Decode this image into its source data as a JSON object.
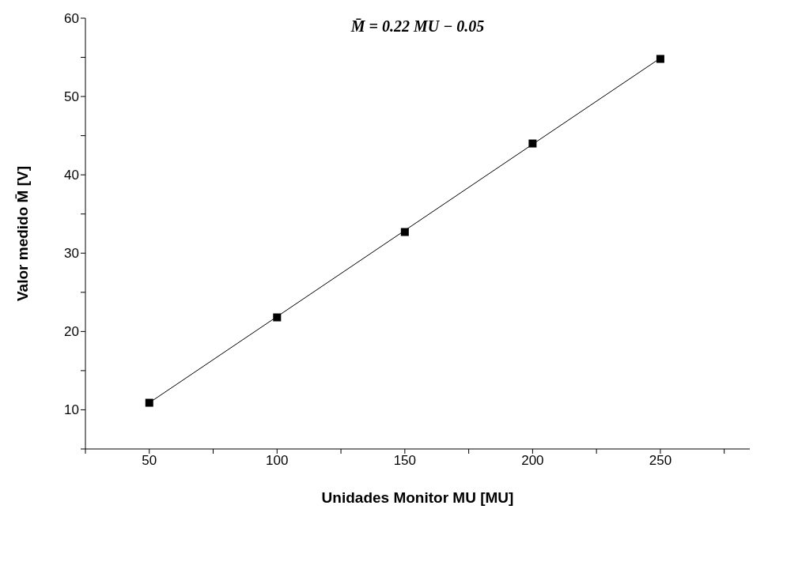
{
  "chart_data": {
    "type": "scatter",
    "title": "M̄ = 0.22 MU − 0.05",
    "xlabel": "Unidades Monitor MU     [MU]",
    "ylabel": "Valor medido M̄  [V]",
    "series": [
      {
        "color": "#000000",
        "marker": "square",
        "x": [
          50,
          100,
          150,
          200,
          250
        ],
        "values": [
          10.9,
          21.8,
          32.7,
          44.0,
          54.8
        ]
      },
      {
        "type": "line",
        "color": "#000000",
        "marker": "none",
        "x": [
          50,
          250
        ],
        "values": [
          10.9,
          54.9
        ]
      }
    ],
    "xlim": [
      25,
      285
    ],
    "ylim": [
      5,
      60
    ],
    "xticks": [
      {
        "value": 25,
        "label": null
      },
      50,
      {
        "value": 75,
        "label": null
      },
      100,
      {
        "value": 125,
        "label": null
      },
      150,
      {
        "value": 175,
        "label": null
      },
      200,
      {
        "value": 225,
        "label": null
      },
      250,
      {
        "value": 275,
        "label": null
      }
    ],
    "yticks": [
      {
        "value": 5,
        "label": null
      },
      10,
      {
        "value": 15,
        "label": null
      },
      20,
      {
        "value": 25,
        "label": null
      },
      30,
      {
        "value": 35,
        "label": null
      },
      40,
      {
        "value": 45,
        "label": null
      },
      50,
      {
        "value": 55,
        "label": null
      },
      60
    ],
    "grid": false,
    "legend": false
  }
}
